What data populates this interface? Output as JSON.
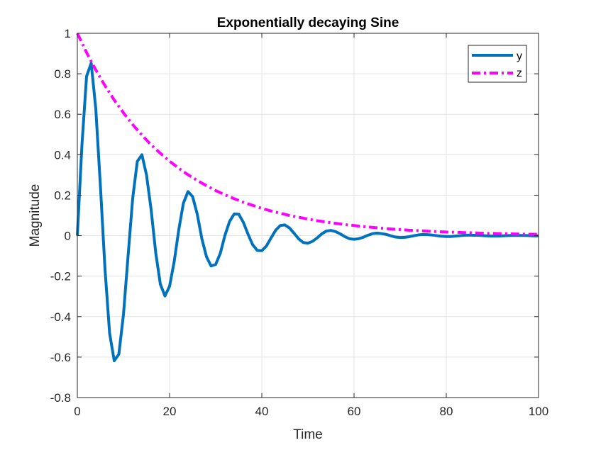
{
  "chart_data": {
    "type": "line",
    "title": "Exponentially decaying Sine",
    "xlabel": "Time",
    "ylabel": "Magnitude",
    "xlim": [
      0,
      100
    ],
    "ylim": [
      -0.8,
      1
    ],
    "xticks": [
      0,
      20,
      40,
      60,
      80,
      100
    ],
    "yticks": [
      1,
      0.8,
      0.6,
      0.4,
      0.2,
      0,
      -0.2,
      -0.4,
      -0.6,
      -0.8
    ],
    "grid": true,
    "legend_position": "top-right",
    "series": [
      {
        "name": "y",
        "color": "#0072BD",
        "line_style": "solid",
        "x": [
          0,
          1,
          2,
          3,
          4,
          5,
          6,
          7,
          8,
          9,
          10,
          11,
          12,
          13,
          14,
          15,
          16,
          17,
          18,
          19,
          20,
          21,
          22,
          23,
          24,
          25,
          26,
          27,
          28,
          29,
          30,
          31,
          32,
          33,
          34,
          35,
          36,
          37,
          38,
          39,
          40,
          41,
          42,
          43,
          44,
          45,
          46,
          47,
          48,
          49,
          50,
          51,
          52,
          53,
          54,
          55,
          56,
          57,
          58,
          59,
          60,
          61,
          62,
          63,
          64,
          65,
          66,
          67,
          68,
          69,
          70,
          71,
          72,
          73,
          74,
          75,
          76,
          77,
          78,
          79,
          80,
          81,
          82,
          83,
          84,
          85,
          86,
          87,
          88,
          89,
          90,
          91,
          92,
          93,
          94,
          95,
          96,
          97,
          98,
          99,
          100
        ],
        "values": [
          0,
          0.449,
          0.787,
          0.853,
          0.627,
          0.246,
          -0.166,
          -0.483,
          -0.618,
          -0.586,
          -0.39,
          -0.1,
          0.184,
          0.367,
          0.4,
          0.3,
          0.128,
          -0.085,
          -0.24,
          -0.298,
          -0.25,
          -0.128,
          0.03,
          0.161,
          0.218,
          0.193,
          0.106,
          -0.015,
          -0.104,
          -0.15,
          -0.142,
          -0.087,
          0.001,
          0.07,
          0.107,
          0.106,
          0.066,
          0.008,
          -0.044,
          -0.073,
          -0.074,
          -0.051,
          -0.011,
          0.027,
          0.05,
          0.053,
          0.038,
          0.012,
          -0.016,
          -0.034,
          -0.037,
          -0.028,
          -0.011,
          0.009,
          0.023,
          0.026,
          0.02,
          0.009,
          -0.005,
          -0.015,
          -0.018,
          -0.015,
          -0.008,
          0.002,
          0.01,
          0.013,
          0.01,
          0.006,
          -0.001,
          -0.007,
          -0.009,
          -0.008,
          -0.005,
          0,
          0.004,
          0.006,
          0.005,
          0.003,
          0,
          -0.003,
          -0.004,
          -0.004,
          -0.002,
          0,
          0.002,
          0.003,
          0.002,
          0.002,
          0,
          -0.001,
          -0.002,
          -0.002,
          -0.001,
          0,
          0.001,
          0.001,
          0.001,
          0.001,
          0,
          -0.001,
          -0.001
        ]
      },
      {
        "name": "z",
        "color": "#FF00FF",
        "line_style": "dashdot",
        "x": [
          0,
          2,
          4,
          6,
          8,
          10,
          12,
          14,
          16,
          18,
          20,
          22,
          24,
          26,
          28,
          30,
          32,
          34,
          36,
          38,
          40,
          42,
          44,
          46,
          48,
          50,
          52,
          54,
          56,
          58,
          60,
          62,
          64,
          66,
          68,
          70,
          72,
          74,
          76,
          78,
          80,
          82,
          84,
          86,
          88,
          90,
          92,
          94,
          96,
          98,
          100
        ],
        "values": [
          1,
          0.905,
          0.819,
          0.741,
          0.67,
          0.607,
          0.549,
          0.497,
          0.449,
          0.407,
          0.368,
          0.333,
          0.301,
          0.273,
          0.247,
          0.223,
          0.202,
          0.183,
          0.165,
          0.15,
          0.135,
          0.122,
          0.111,
          0.1,
          0.091,
          0.082,
          0.074,
          0.067,
          0.061,
          0.055,
          0.05,
          0.045,
          0.041,
          0.037,
          0.033,
          0.03,
          0.027,
          0.025,
          0.022,
          0.02,
          0.018,
          0.017,
          0.015,
          0.014,
          0.012,
          0.011,
          0.01,
          0.009,
          0.008,
          0.007,
          0.007
        ]
      }
    ]
  }
}
